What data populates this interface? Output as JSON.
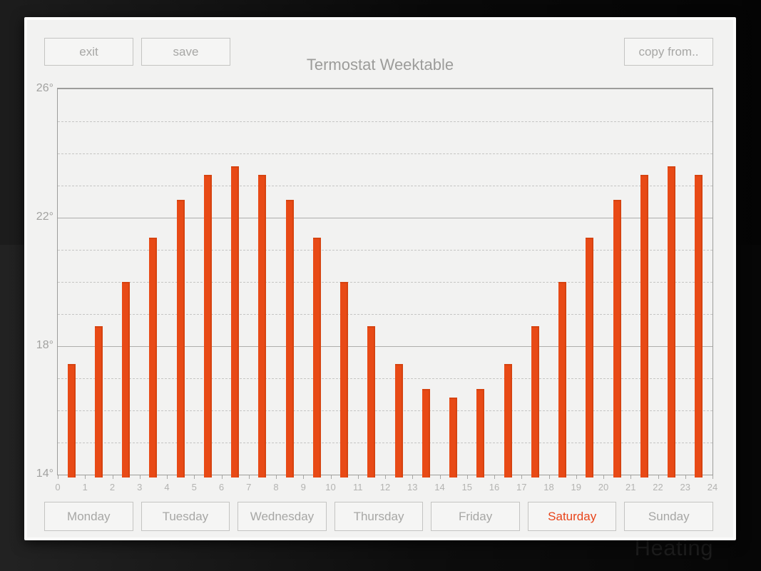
{
  "header": {
    "title": "Termostat Weektable",
    "exit_label": "exit",
    "save_label": "save",
    "copy_from_label": "copy from.."
  },
  "chart_data": {
    "type": "bar",
    "x": [
      0,
      1,
      2,
      3,
      4,
      5,
      6,
      7,
      8,
      9,
      10,
      11,
      12,
      13,
      14,
      15,
      16,
      17,
      18,
      19,
      20,
      21,
      22,
      23
    ],
    "values": [
      17.45,
      18.62,
      20.0,
      21.38,
      22.55,
      23.33,
      23.6,
      23.33,
      22.55,
      21.38,
      20.0,
      18.62,
      17.45,
      16.67,
      16.4,
      16.67,
      17.45,
      18.62,
      20.0,
      21.38,
      22.55,
      23.33,
      23.6,
      23.33
    ],
    "unit": "°C",
    "title": "",
    "xlabel": "",
    "ylabel": "",
    "xlim": [
      0,
      24
    ],
    "ylim": [
      14,
      26
    ],
    "x_tick_labels": [
      "0",
      "1",
      "2",
      "3",
      "4",
      "5",
      "6",
      "7",
      "8",
      "9",
      "10",
      "11",
      "12",
      "13",
      "14",
      "15",
      "16",
      "17",
      "18",
      "19",
      "20",
      "21",
      "22",
      "23",
      "24"
    ],
    "y_ticks": [
      {
        "label": "26°",
        "value": 26
      },
      {
        "label": "22°",
        "value": 22
      },
      {
        "label": "18°",
        "value": 18
      },
      {
        "label": "14°",
        "value": 14
      }
    ],
    "solid_gridlines_at": [
      18,
      22
    ],
    "dashed_gridlines_at": [
      15,
      16,
      17,
      19,
      20,
      21,
      23,
      24,
      25
    ],
    "grid": true,
    "legend": false,
    "bar_color": "#e84a16"
  },
  "days": {
    "items": [
      {
        "label": "Monday",
        "active": false
      },
      {
        "label": "Tuesday",
        "active": false
      },
      {
        "label": "Wednesday",
        "active": false
      },
      {
        "label": "Thursday",
        "active": false
      },
      {
        "label": "Friday",
        "active": false
      },
      {
        "label": "Saturday",
        "active": true
      },
      {
        "label": "Sunday",
        "active": false
      }
    ],
    "active_color": "#e8441a"
  },
  "watermark": "Heating"
}
